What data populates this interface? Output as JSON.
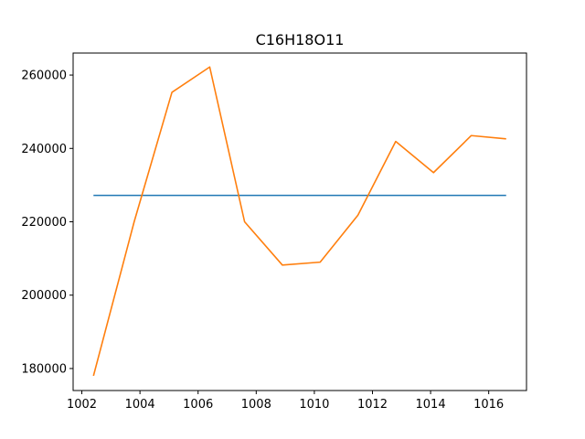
{
  "chart_data": {
    "type": "line",
    "title": "C16H18O11",
    "xlabel": "",
    "ylabel": "",
    "xlim": [
      1001.7,
      1017.3
    ],
    "ylim": [
      174000,
      266000
    ],
    "x_ticks": [
      1002,
      1004,
      1006,
      1008,
      1010,
      1012,
      1014,
      1016
    ],
    "y_ticks": [
      180000,
      200000,
      220000,
      240000,
      260000
    ],
    "grid": false,
    "legend": "none",
    "series": [
      {
        "color": "#1f77b4",
        "x": [
          1002.4,
          1016.6
        ],
        "y": [
          227200,
          227200
        ]
      },
      {
        "color": "#ff7f0e",
        "x": [
          1002.4,
          1003.8,
          1005.1,
          1006.4,
          1007.6,
          1008.9,
          1010.2,
          1011.5,
          1012.8,
          1014.1,
          1015.4,
          1016.6
        ],
        "y": [
          178000,
          220000,
          255300,
          262200,
          220000,
          208200,
          209000,
          221800,
          241900,
          233400,
          243500,
          242600
        ]
      }
    ]
  }
}
